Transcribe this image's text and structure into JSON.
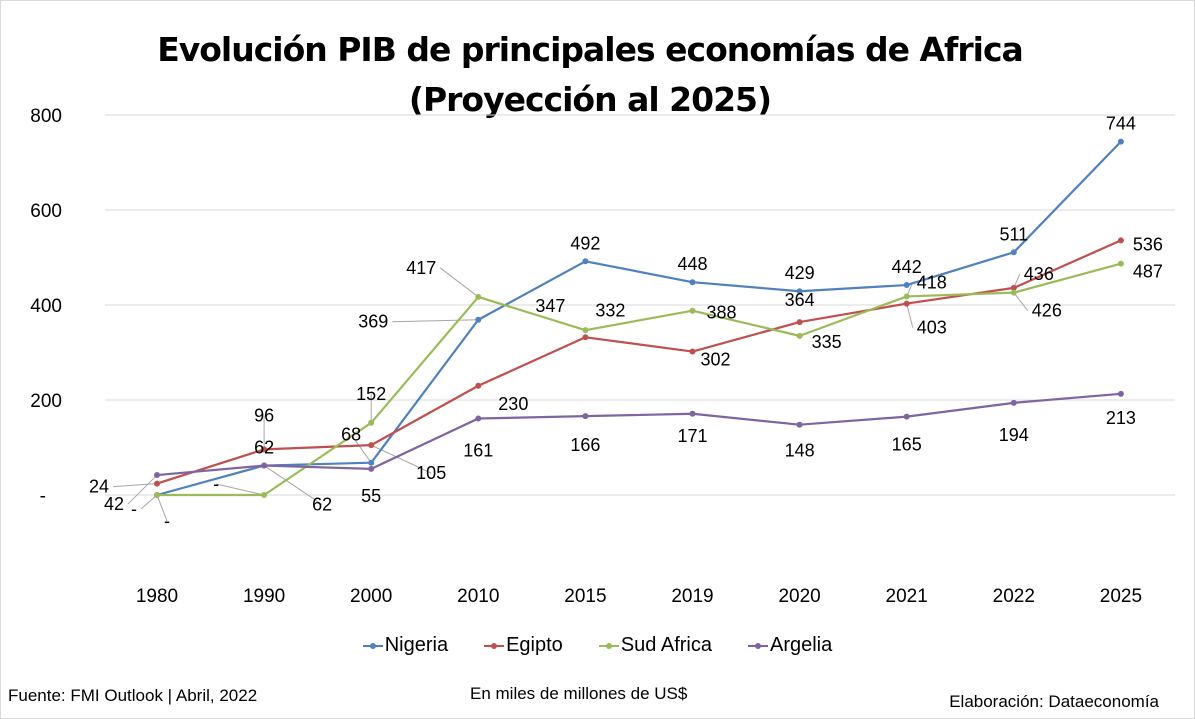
{
  "chart_data": {
    "type": "line",
    "title": "Evolución PIB de principales economías de Africa",
    "subtitle": "(Proyección al 2025)",
    "xlabel": "",
    "ylabel": "",
    "categories": [
      "1980",
      "1990",
      "2000",
      "2010",
      "2015",
      "2019",
      "2020",
      "2021",
      "2022",
      "2025"
    ],
    "ylim": [
      -100,
      800
    ],
    "yticks": [
      0,
      200,
      400,
      600,
      800
    ],
    "ytick_labels": [
      "-",
      "200",
      "400",
      "600",
      "800"
    ],
    "grid": true,
    "legend_position": "bottom",
    "series": [
      {
        "name": "Nigeria",
        "color": "#4f81bd",
        "values": [
          0,
          62,
          68,
          369,
          492,
          448,
          429,
          442,
          511,
          744
        ],
        "labels": [
          "-",
          "62",
          "68",
          "369",
          "492",
          "448",
          "429",
          "442",
          "511",
          "744"
        ]
      },
      {
        "name": "Egipto",
        "color": "#c0504d",
        "values": [
          24,
          96,
          105,
          230,
          332,
          302,
          364,
          403,
          436,
          536
        ],
        "labels": [
          "24",
          "96",
          "105",
          "230",
          "332",
          "302",
          "364",
          "403",
          "436",
          "536"
        ]
      },
      {
        "name": "Sud Africa",
        "color": "#9bbb59",
        "values": [
          0,
          0,
          152,
          417,
          347,
          388,
          335,
          418,
          426,
          487
        ],
        "labels": [
          "-",
          "-",
          "152",
          "417",
          "347",
          "388",
          "335",
          "418",
          "426",
          "487"
        ]
      },
      {
        "name": "Argelia",
        "color": "#8064a2",
        "values": [
          42,
          62,
          55,
          161,
          166,
          171,
          148,
          165,
          194,
          213
        ],
        "labels": [
          "42",
          "62",
          "55",
          "161",
          "166",
          "171",
          "148",
          "165",
          "194",
          "213"
        ]
      }
    ]
  },
  "footer": {
    "source": "Fuente: FMI Outlook | Abril, 2022",
    "units": "En miles de millones de US$",
    "credit": "Elaboración: Dataeconomía"
  }
}
